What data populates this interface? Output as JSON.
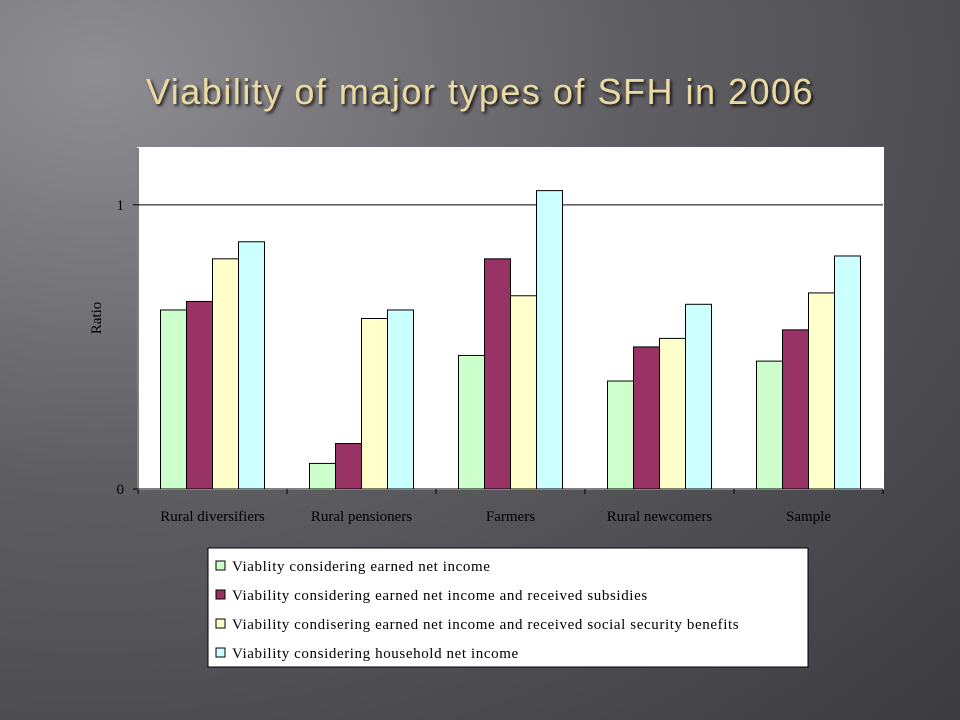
{
  "chart_data": {
    "type": "bar",
    "title": "Viability of major types of SFH in 2006",
    "y_label": "Ratio",
    "categories": [
      "Rural diversifiers",
      "Rural pensioners",
      "Farmers",
      "Rural newcomers",
      "Sample"
    ],
    "series": [
      {
        "name": "Viablity considering earned net income",
        "color": "#ccffcc",
        "values": [
          0.63,
          0.09,
          0.47,
          0.38,
          0.45
        ]
      },
      {
        "name": "Viability considering earned net income and received subsidies",
        "color": "#993366",
        "values": [
          0.66,
          0.16,
          0.81,
          0.5,
          0.56
        ]
      },
      {
        "name": "Viability condisering earned net income and received social security benefits",
        "color": "#ffffcc",
        "values": [
          0.81,
          0.6,
          0.68,
          0.53,
          0.69
        ]
      },
      {
        "name": "Viability considering household net income",
        "color": "#ccffff",
        "values": [
          0.87,
          0.63,
          1.05,
          0.65,
          0.82
        ]
      }
    ],
    "ylim": [
      0,
      1.2
    ],
    "yticks": [
      0,
      1
    ],
    "grid": true
  }
}
